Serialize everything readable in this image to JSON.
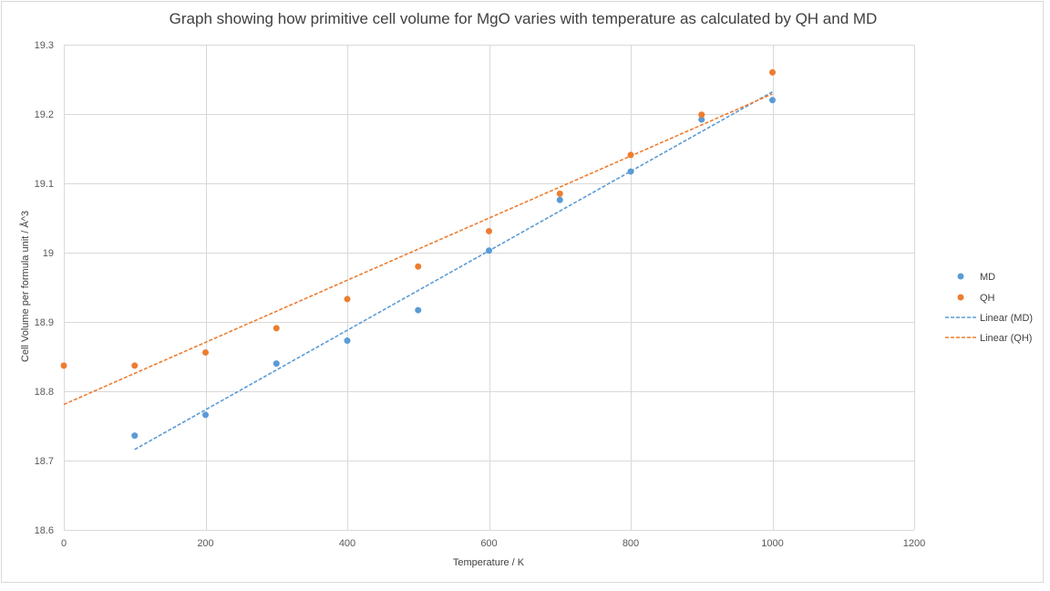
{
  "chart_data": {
    "type": "scatter",
    "title": "Graph showing how primitive cell volume for MgO varies with temperature as calculated by QH and MD",
    "xlabel": "Temperature  / K",
    "ylabel": "Cell Volume per formula unit / Å^3",
    "xlim": [
      0,
      1200
    ],
    "ylim": [
      18.6,
      19.3
    ],
    "xticks": [
      0,
      200,
      400,
      600,
      800,
      1000,
      1200
    ],
    "yticks": [
      18.6,
      18.7,
      18.8,
      18.9,
      19,
      19.1,
      19.2,
      19.3
    ],
    "xtick_labels": [
      "0",
      "200",
      "400",
      "600",
      "800",
      "1000",
      "1200"
    ],
    "ytick_labels": [
      "18.6",
      "18.7",
      "18.8",
      "18.9",
      "19",
      "19.1",
      "19.2",
      "19.3"
    ],
    "grid": true,
    "legend_position": "right",
    "series": [
      {
        "name": "MD",
        "color": "#5b9bd5",
        "x": [
          100,
          200,
          300,
          400,
          500,
          600,
          700,
          800,
          900,
          1000
        ],
        "y": [
          18.736,
          18.766,
          18.84,
          18.873,
          18.917,
          19.003,
          19.076,
          19.117,
          19.192,
          19.22
        ]
      },
      {
        "name": "QH",
        "color": "#ed7d31",
        "x": [
          0,
          100,
          200,
          300,
          400,
          500,
          600,
          700,
          800,
          900,
          1000
        ],
        "y": [
          18.837,
          18.837,
          18.856,
          18.891,
          18.933,
          18.98,
          19.031,
          19.085,
          19.141,
          19.199,
          19.26
        ]
      }
    ],
    "trendlines": [
      {
        "name": "Linear (MD)",
        "color": "#5b9bd5",
        "x": [
          100,
          1000
        ],
        "y": [
          18.716,
          19.232
        ]
      },
      {
        "name": "Linear (QH)",
        "color": "#ed7d31",
        "x": [
          0,
          1000
        ],
        "y": [
          18.781,
          19.229
        ]
      }
    ]
  }
}
